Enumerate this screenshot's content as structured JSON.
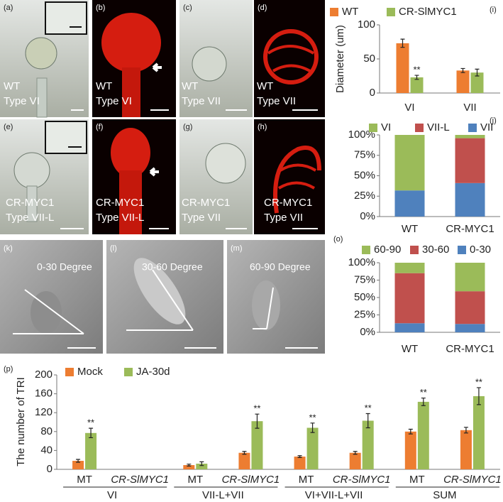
{
  "panels": [
    {
      "label": "(a)",
      "text": [
        "WT",
        "Type VI"
      ]
    },
    {
      "label": "(b)",
      "text": [
        "WT",
        "Type VI"
      ]
    },
    {
      "label": "(c)",
      "text": [
        "WT",
        "Type VII"
      ]
    },
    {
      "label": "(d)",
      "text": [
        "WT",
        "Type VII"
      ]
    },
    {
      "label": "(e)",
      "text": [
        "CR-MYC1",
        "Type VII-L"
      ]
    },
    {
      "label": "(f)",
      "text": [
        "CR-MYC1",
        "Type VII-L"
      ]
    },
    {
      "label": "(g)",
      "text": [
        "CR-MYC1",
        "Type VII"
      ]
    },
    {
      "label": "(h)",
      "text": [
        "CR-MYC1",
        "Type VII"
      ]
    },
    {
      "label": "(k)",
      "text": [
        "0-30 Degree"
      ]
    },
    {
      "label": "(l)",
      "text": [
        "30-60 Degree"
      ]
    },
    {
      "label": "(m)",
      "text": [
        "60-90 Degree"
      ]
    }
  ],
  "chart_data": [
    {
      "type": "bar",
      "label": "(i)",
      "ylabel": "Diameter (um)",
      "categories": [
        "VI",
        "VII"
      ],
      "series": [
        {
          "name": "WT",
          "color": "#ed7d31",
          "values": [
            73,
            33
          ],
          "errors": [
            6,
            3
          ]
        },
        {
          "name": "CR-SlMYC1",
          "color": "#9bbb59",
          "values": [
            23,
            30
          ],
          "errors": [
            3,
            5
          ],
          "significance": [
            "**",
            null
          ]
        }
      ],
      "ylim": [
        0,
        100
      ],
      "yticks": [
        0,
        50,
        100
      ]
    },
    {
      "type": "stacked_bar",
      "label": "(j)",
      "categories": [
        "WT",
        "CR-MYC1"
      ],
      "series": [
        {
          "name": "VI",
          "color": "#9bbb59",
          "values": [
            68,
            4
          ]
        },
        {
          "name": "VII-L",
          "color": "#c0504d",
          "values": [
            0,
            55
          ]
        },
        {
          "name": "VII",
          "color": "#4f81bd",
          "values": [
            32,
            41
          ]
        }
      ],
      "ylim": [
        0,
        100
      ],
      "yticks": [
        {
          "value": 0,
          "label": "0%"
        },
        {
          "value": 25,
          "label": "25%"
        },
        {
          "value": 50,
          "label": "50%"
        },
        {
          "value": 75,
          "label": "75%"
        },
        {
          "value": 100,
          "label": "100%"
        }
      ]
    },
    {
      "type": "stacked_bar",
      "label": "(o)",
      "categories": [
        "WT",
        "CR-MYC1"
      ],
      "series": [
        {
          "name": "60-90",
          "color": "#9bbb59",
          "values": [
            15,
            41
          ]
        },
        {
          "name": "30-60",
          "color": "#c0504d",
          "values": [
            72,
            47
          ]
        },
        {
          "name": "0-30",
          "color": "#4f81bd",
          "values": [
            13,
            12
          ]
        }
      ],
      "ylim": [
        0,
        100
      ],
      "yticks": [
        {
          "value": 0,
          "label": "0%"
        },
        {
          "value": 25,
          "label": "25%"
        },
        {
          "value": 50,
          "label": "50%"
        },
        {
          "value": 75,
          "label": "75%"
        },
        {
          "value": 100,
          "label": "100%"
        }
      ]
    },
    {
      "type": "bar",
      "label": "(p)",
      "ylabel": "The number of TRI",
      "categories": [
        "MT",
        "CR-SlMYC1",
        "MT",
        "CR-SlMYC1",
        "MT",
        "CR-SlMYC1",
        "MT",
        "CR-SlMYC1"
      ],
      "groups": [
        "VI",
        "VII-L+VII",
        "VI+VII-L+VII",
        "SUM"
      ],
      "series": [
        {
          "name": "Mock",
          "color": "#ed7d31",
          "values": [
            18,
            null,
            9,
            35,
            27,
            35,
            80,
            83
          ],
          "errors": [
            3,
            null,
            2,
            3,
            2,
            3,
            5,
            6
          ]
        },
        {
          "name": "JA-30d",
          "color": "#9bbb59",
          "values": [
            77,
            null,
            12,
            102,
            88,
            103,
            143,
            155
          ],
          "errors": [
            10,
            null,
            4,
            15,
            10,
            15,
            8,
            18
          ],
          "significance": [
            "**",
            null,
            null,
            "**",
            "**",
            "**",
            "**",
            "**"
          ]
        }
      ],
      "ylim": [
        0,
        200
      ],
      "yticks": [
        0,
        40,
        80,
        120,
        160,
        200
      ]
    }
  ]
}
